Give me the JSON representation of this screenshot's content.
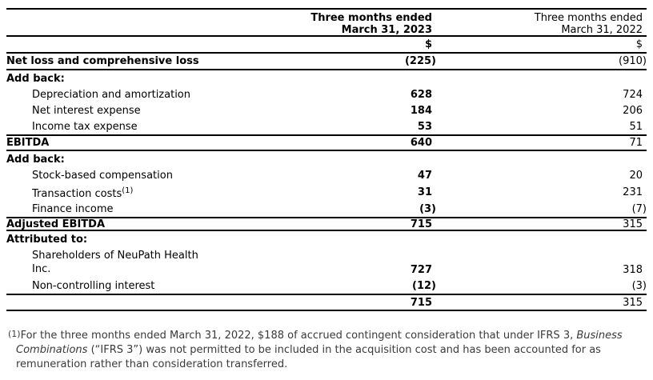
{
  "table": {
    "header": {
      "period_2023_line1": "Three months ended",
      "period_2023_line2": "March 31, 2023",
      "period_2022_line1": "Three months ended",
      "period_2022_line2": "March 31, 2022",
      "currency_2023": "$",
      "currency_2022": "$"
    },
    "rows": [
      {
        "label": "Net loss and comprehensive loss",
        "v2023": "(225)",
        "v2022": "(910)",
        "kind": "netloss",
        "bold_label": true,
        "indent": false
      },
      {
        "label": "Add back:",
        "v2023": "",
        "v2022": "",
        "kind": "section",
        "bold_label": true,
        "indent": false
      },
      {
        "label": "Depreciation and amortization",
        "v2023": "628",
        "v2022": "724",
        "kind": "item",
        "bold_label": false,
        "indent": true
      },
      {
        "label": "Net interest expense",
        "v2023": "184",
        "v2022": "206",
        "kind": "item",
        "bold_label": false,
        "indent": true
      },
      {
        "label": "Income tax expense",
        "v2023": "53",
        "v2022": "51",
        "kind": "item",
        "bold_label": false,
        "indent": true
      },
      {
        "label": "EBITDA",
        "v2023": "640",
        "v2022": "71",
        "kind": "total-ebitda",
        "bold_label": true,
        "indent": false
      },
      {
        "label": "Add back:",
        "v2023": "",
        "v2022": "",
        "kind": "section",
        "bold_label": true,
        "indent": false
      },
      {
        "label": "Stock-based compensation",
        "v2023": "47",
        "v2022": "20",
        "kind": "item-tall",
        "bold_label": false,
        "indent": true
      },
      {
        "label": "Transaction costs",
        "sup": "(1)",
        "v2023": "31",
        "v2022": "231",
        "kind": "item-tall",
        "bold_label": false,
        "indent": true
      },
      {
        "label": "Finance income",
        "v2023": "(3)",
        "v2022": "(7)",
        "kind": "item",
        "bold_label": false,
        "indent": true
      },
      {
        "label": "Adjusted EBITDA",
        "v2023": "715",
        "v2022": "315",
        "kind": "total-adj",
        "bold_label": true,
        "indent": false
      },
      {
        "label": "Attributed to:",
        "v2023": "",
        "v2022": "",
        "kind": "section",
        "bold_label": true,
        "indent": false
      },
      {
        "label": "Shareholders of NeuPath Health\nInc.",
        "v2023": "727",
        "v2022": "318",
        "kind": "twoline",
        "bold_label": false,
        "indent": true
      },
      {
        "label": "Non-controlling interest",
        "v2023": "(12)",
        "v2022": "(3)",
        "kind": "item",
        "bold_label": false,
        "indent": true
      },
      {
        "label": "",
        "v2023": "715",
        "v2022": "315",
        "kind": "total-grand",
        "bold_label": false,
        "indent": false
      }
    ]
  },
  "footnote": {
    "marker": "(1)",
    "part1": "For the three months ended March 31, 2022, $188 of accrued contingent consideration that under IFRS 3, ",
    "italic": "Business Combinations",
    "part2": " (“IFRS 3”) was not permitted to be included in the acquisition cost and has been accounted for as remuneration rather than consideration transferred."
  }
}
